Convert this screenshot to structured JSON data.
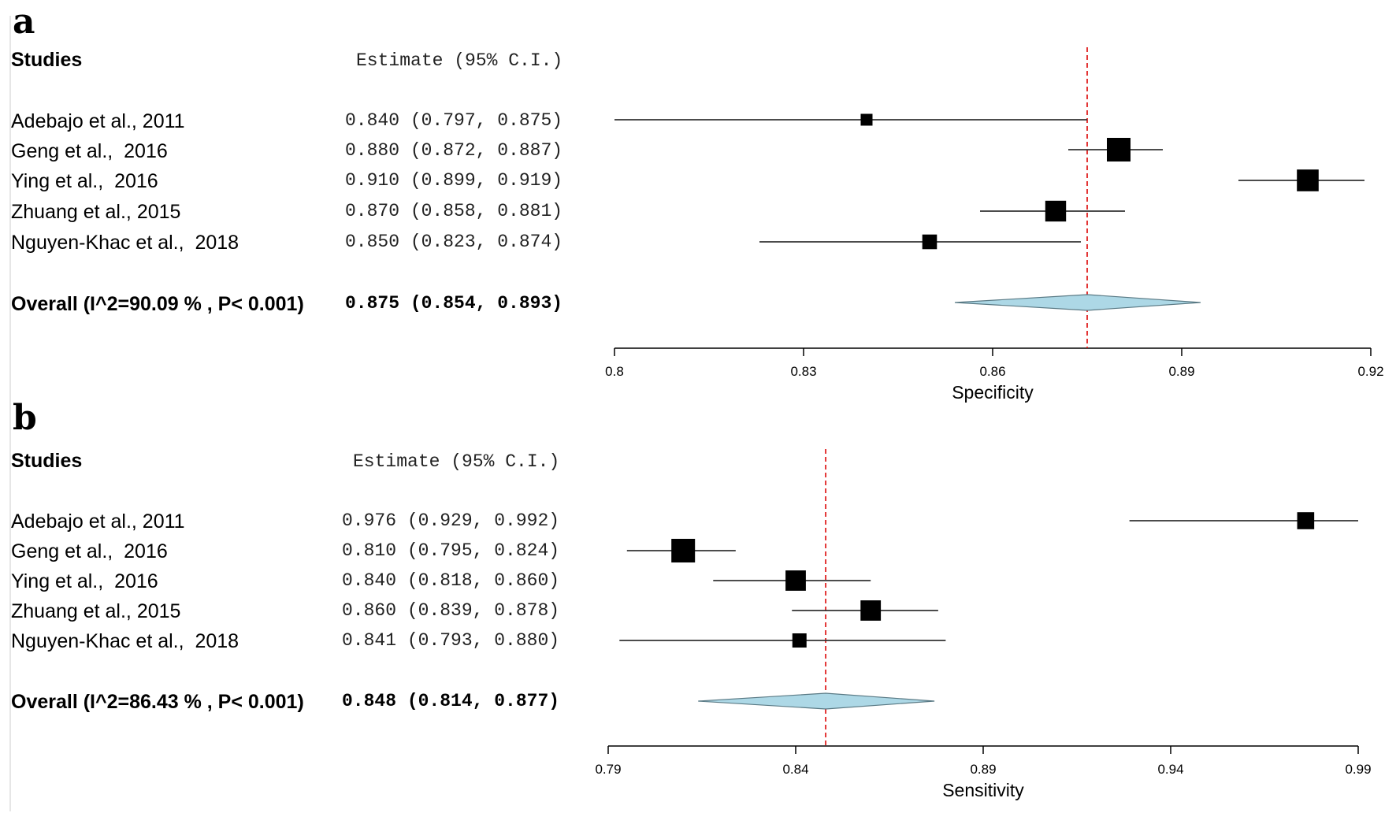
{
  "chart_data": [
    {
      "type": "forest",
      "panel_label": "a",
      "header_studies": "Studies",
      "header_estimate": "Estimate (95% C.I.)",
      "xlabel": "Specificity",
      "xlim": [
        0.8,
        0.92
      ],
      "ticks": [
        "0.8",
        "0.83",
        "0.86",
        "0.89",
        "0.92"
      ],
      "tick_values": [
        0.8,
        0.83,
        0.86,
        0.89,
        0.92
      ],
      "reference_line": 0.875,
      "studies": [
        {
          "name": "Adebajo et al., 2011",
          "estimate_text": "0.840 (0.797, 0.875)",
          "est": 0.84,
          "lo": 0.797,
          "hi": 0.875,
          "weight": 0.5
        },
        {
          "name": "Geng et al.,  2016",
          "estimate_text": "0.880 (0.872, 0.887)",
          "est": 0.88,
          "lo": 0.872,
          "hi": 0.887,
          "weight": 1.0
        },
        {
          "name": "Ying et al.,  2016",
          "estimate_text": "0.910 (0.899, 0.919)",
          "est": 0.91,
          "lo": 0.899,
          "hi": 0.919,
          "weight": 0.92
        },
        {
          "name": "Zhuang et al., 2015",
          "estimate_text": "0.870 (0.858, 0.881)",
          "est": 0.87,
          "lo": 0.858,
          "hi": 0.881,
          "weight": 0.88
        },
        {
          "name": "Nguyen-Khac et al.,  2018",
          "estimate_text": "0.850 (0.823, 0.874)",
          "est": 0.85,
          "lo": 0.823,
          "hi": 0.874,
          "weight": 0.62
        }
      ],
      "overall": {
        "label": "Overall (I^2=90.09 % , P< 0.001)",
        "estimate_text": "0.875 (0.854, 0.893)",
        "est": 0.875,
        "lo": 0.854,
        "hi": 0.893
      }
    },
    {
      "type": "forest",
      "panel_label": "b",
      "header_studies": "Studies",
      "header_estimate": "Estimate (95% C.I.)",
      "xlabel": "Sensitivity",
      "xlim": [
        0.79,
        0.99
      ],
      "ticks": [
        "0.79",
        "0.84",
        "0.89",
        "0.94",
        "0.99"
      ],
      "tick_values": [
        0.79,
        0.84,
        0.89,
        0.94,
        0.99
      ],
      "reference_line": 0.848,
      "studies": [
        {
          "name": "Adebajo et al., 2011",
          "estimate_text": "0.976 (0.929, 0.992)",
          "est": 0.976,
          "lo": 0.929,
          "hi": 0.992,
          "weight": 0.72
        },
        {
          "name": "Geng et al.,  2016",
          "estimate_text": "0.810 (0.795, 0.824)",
          "est": 0.81,
          "lo": 0.795,
          "hi": 0.824,
          "weight": 1.0
        },
        {
          "name": "Ying et al.,  2016",
          "estimate_text": "0.840 (0.818, 0.860)",
          "est": 0.84,
          "lo": 0.818,
          "hi": 0.86,
          "weight": 0.86
        },
        {
          "name": "Zhuang et al., 2015",
          "estimate_text": "0.860 (0.839, 0.878)",
          "est": 0.86,
          "lo": 0.839,
          "hi": 0.878,
          "weight": 0.86
        },
        {
          "name": "Nguyen-Khac et al.,  2018",
          "estimate_text": "0.841 (0.793, 0.880)",
          "est": 0.841,
          "lo": 0.793,
          "hi": 0.88,
          "weight": 0.6
        }
      ],
      "overall": {
        "label": "Overall (I^2=86.43 % , P< 0.001)",
        "estimate_text": "0.848 (0.814, 0.877)",
        "est": 0.848,
        "lo": 0.814,
        "hi": 0.877
      }
    }
  ],
  "colors": {
    "reference_line": "#e02020",
    "diamond_fill": "#add8e6",
    "diamond_stroke": "#5a7a85",
    "marker": "#000000",
    "ci_line": "#333333"
  }
}
